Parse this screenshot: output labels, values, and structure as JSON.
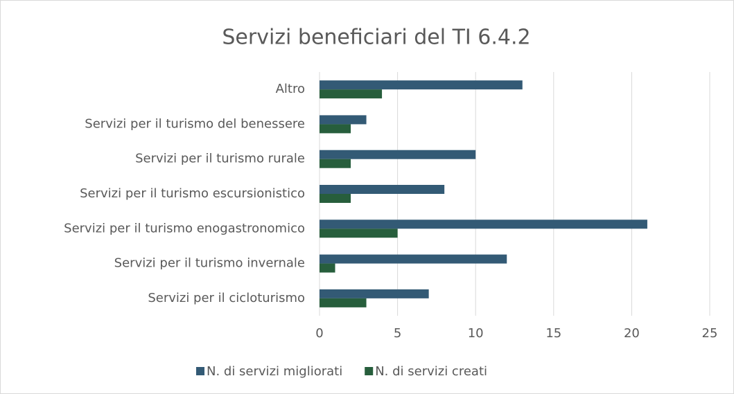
{
  "chart_data": {
    "type": "hbar",
    "title": "Servizi beneficiari del TI 6.4.2",
    "categories": [
      "Altro",
      "Servizi per il turismo del benessere",
      "Servizi per il turismo rurale",
      "Servizi per il turismo escursionistico",
      "Servizi per il turismo enogastronomico",
      "Servizi per il turismo invernale",
      "Servizi per il cicloturismo"
    ],
    "series": [
      {
        "name": "N. di servizi migliorati",
        "color": "#335a75",
        "values": [
          13,
          3,
          10,
          8,
          21,
          12,
          7
        ]
      },
      {
        "name": "N. di servizi creati",
        "color": "#275e3c",
        "values": [
          4,
          2,
          2,
          2,
          5,
          1,
          3
        ]
      }
    ],
    "xlim": [
      0,
      25
    ],
    "xticks": [
      0,
      5,
      10,
      15,
      20,
      25
    ],
    "grid": true,
    "legend": "bottom"
  }
}
